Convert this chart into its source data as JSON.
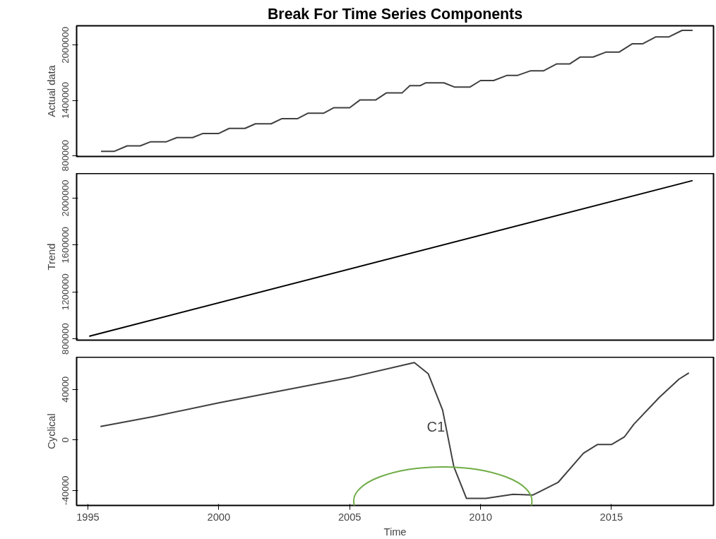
{
  "chart_data": [
    {
      "type": "line",
      "title": "Break For Time Series Components",
      "ylabel": "Actual data",
      "grid": false,
      "tick_labels": "y",
      "xlim": [
        1994.57,
        2018.9
      ],
      "ylim": [
        790000,
        2210000
      ],
      "yticks": [
        800000,
        1400000,
        2000000
      ],
      "series": [
        {
          "color": "#404040",
          "x": [
            1995.5,
            1996.0,
            1996.5,
            1997.0,
            1997.4,
            1998.0,
            1998.4,
            1999.0,
            1999.4,
            2000.0,
            2000.4,
            2001.0,
            2001.4,
            2002.0,
            2002.4,
            2003.0,
            2003.4,
            2004.0,
            2004.4,
            2005.0,
            2005.4,
            2006.0,
            2006.4,
            2007.0,
            2007.3,
            2007.7,
            2007.9,
            2008.6,
            2009.0,
            2009.6,
            2010.0,
            2010.5,
            2011.0,
            2011.4,
            2011.9,
            2012.4,
            2012.9,
            2013.4,
            2013.8,
            2014.3,
            2014.8,
            2015.3,
            2015.8,
            2016.2,
            2016.7,
            2017.2,
            2017.7,
            2018.1
          ],
          "values": [
            845000,
            845000,
            905000,
            905000,
            950000,
            950000,
            995000,
            995000,
            1040000,
            1040000,
            1095000,
            1095000,
            1145000,
            1145000,
            1200000,
            1200000,
            1260000,
            1260000,
            1320000,
            1320000,
            1405000,
            1405000,
            1480000,
            1480000,
            1560000,
            1560000,
            1590000,
            1590000,
            1545000,
            1545000,
            1615000,
            1615000,
            1670000,
            1670000,
            1720000,
            1720000,
            1795000,
            1795000,
            1870000,
            1870000,
            1925000,
            1925000,
            2015000,
            2015000,
            2090000,
            2090000,
            2160000,
            2160000
          ]
        }
      ]
    },
    {
      "type": "line",
      "ylabel": "Trend",
      "grid": false,
      "tick_labels": "y",
      "xlim": [
        1994.57,
        2018.9
      ],
      "ylim": [
        789000,
        2211000
      ],
      "yticks": [
        800000,
        1200000,
        1600000,
        {
          "value": 2000000,
          "label": "2000000"
        }
      ],
      "series": [
        {
          "color": "#000000",
          "x": [
            1995.05,
            2018.1
          ],
          "values": [
            822000,
            2150000
          ]
        }
      ]
    },
    {
      "type": "line",
      "ylabel": "Cyclical",
      "xlabel": "Time",
      "grid": false,
      "xlim": [
        1994.57,
        2018.9
      ],
      "ylim": [
        -51900,
        65600
      ],
      "xticks": [
        1995,
        2000,
        2005,
        2010,
        2015
      ],
      "yticks": [
        -40000,
        0,
        40000
      ],
      "annotations": [
        "C1"
      ],
      "series": [
        {
          "color": "#404040",
          "x": [
            1995.48,
            1997.5,
            2000.0,
            2001.88,
            2005.0,
            2007.47,
            2008.0,
            2008.55,
            2008.98,
            2009.46,
            2010.2,
            2011.24,
            2011.99,
            2012.96,
            2013.93,
            2014.46,
            2015.0,
            2015.5,
            2015.86,
            2016.83,
            2017.58,
            2017.96
          ],
          "values": [
            10600,
            18500,
            29400,
            36900,
            49400,
            61300,
            52500,
            23700,
            -21200,
            -46300,
            -46300,
            -43100,
            -43700,
            -33700,
            -10600,
            -3700,
            -3700,
            2500,
            12500,
            33700,
            48100,
            53100
          ]
        }
      ]
    }
  ]
}
